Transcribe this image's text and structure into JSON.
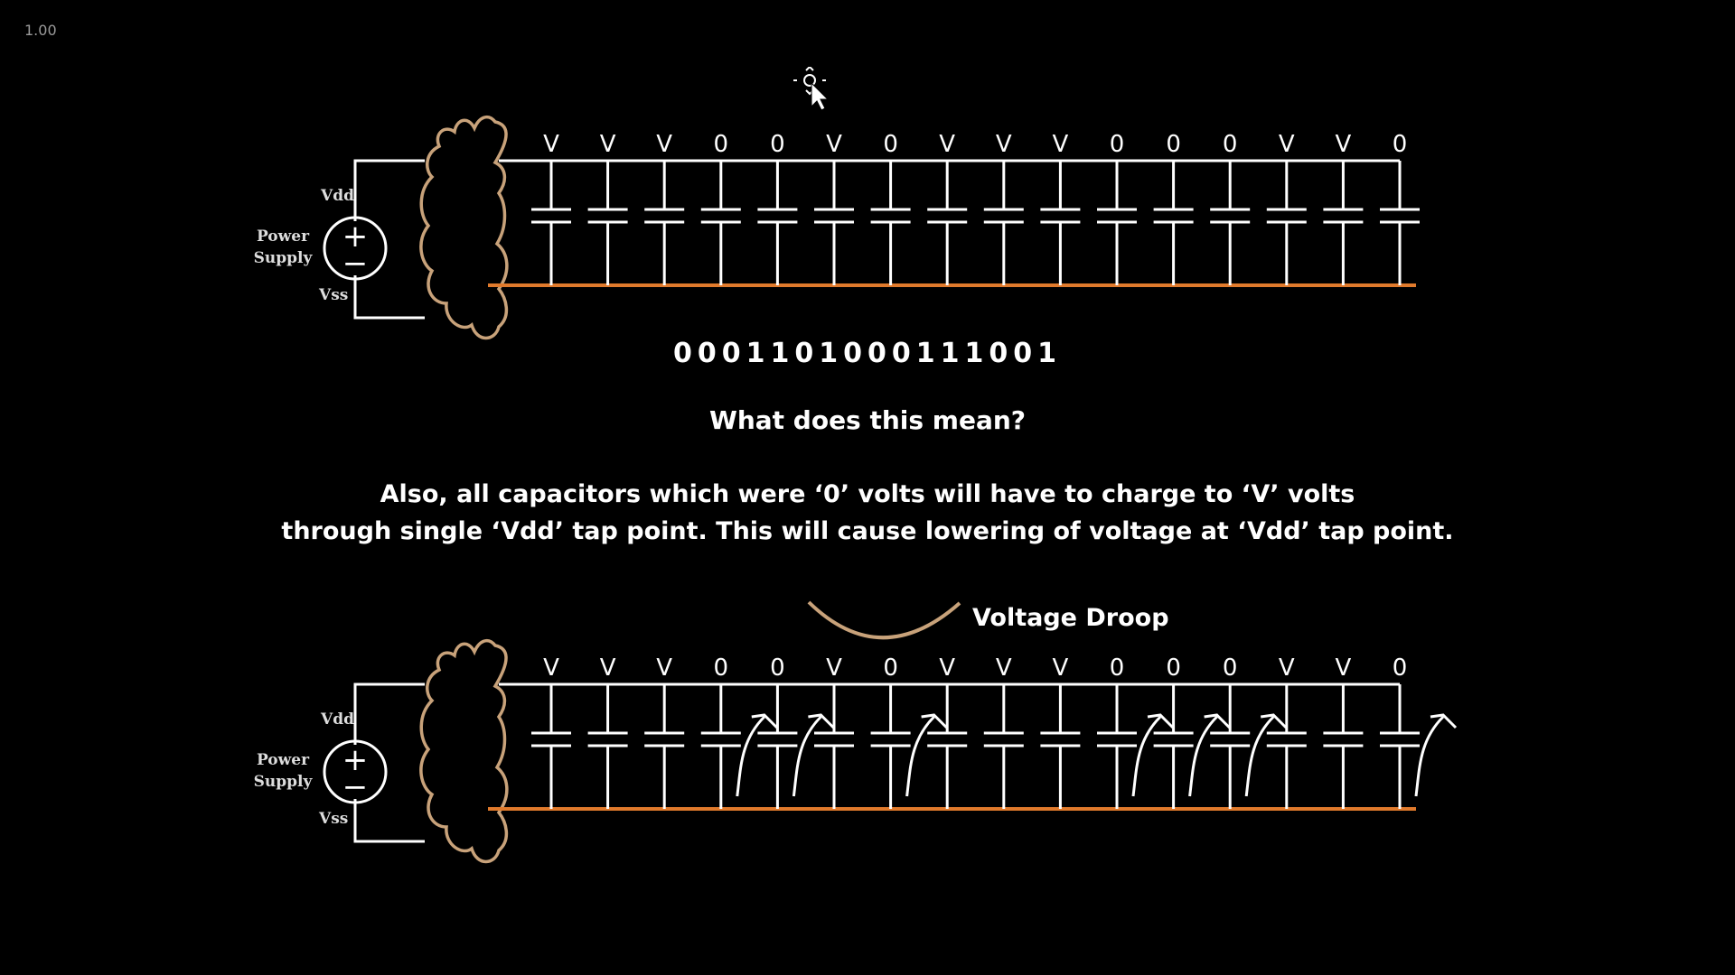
{
  "zoom_label": "1.00",
  "circuit_labels": {
    "vdd": "Vdd",
    "vss": "Vss",
    "power_supply_line1": "Power",
    "power_supply_line2": "Supply",
    "plus": "+",
    "minus": "−"
  },
  "capacitor_states": [
    "V",
    "V",
    "V",
    "0",
    "0",
    "V",
    "0",
    "V",
    "V",
    "V",
    "0",
    "0",
    "0",
    "V",
    "V",
    "0"
  ],
  "bit_string": "0001101000111001",
  "question": "What does this mean?",
  "explanation": {
    "line1": "Also, all capacitors which were ‘0’ volts will have to charge to ‘V’ volts",
    "line2": "through single ‘Vdd’ tap point. This will cause lowering of voltage at ‘Vdd’ tap point."
  },
  "droop_label": "Voltage Droop",
  "colors": {
    "background": "#000000",
    "wire": "#ffffff",
    "ground_rail": "#e07a2c",
    "cloud": "#c8a27a",
    "text": "#ffffff"
  }
}
